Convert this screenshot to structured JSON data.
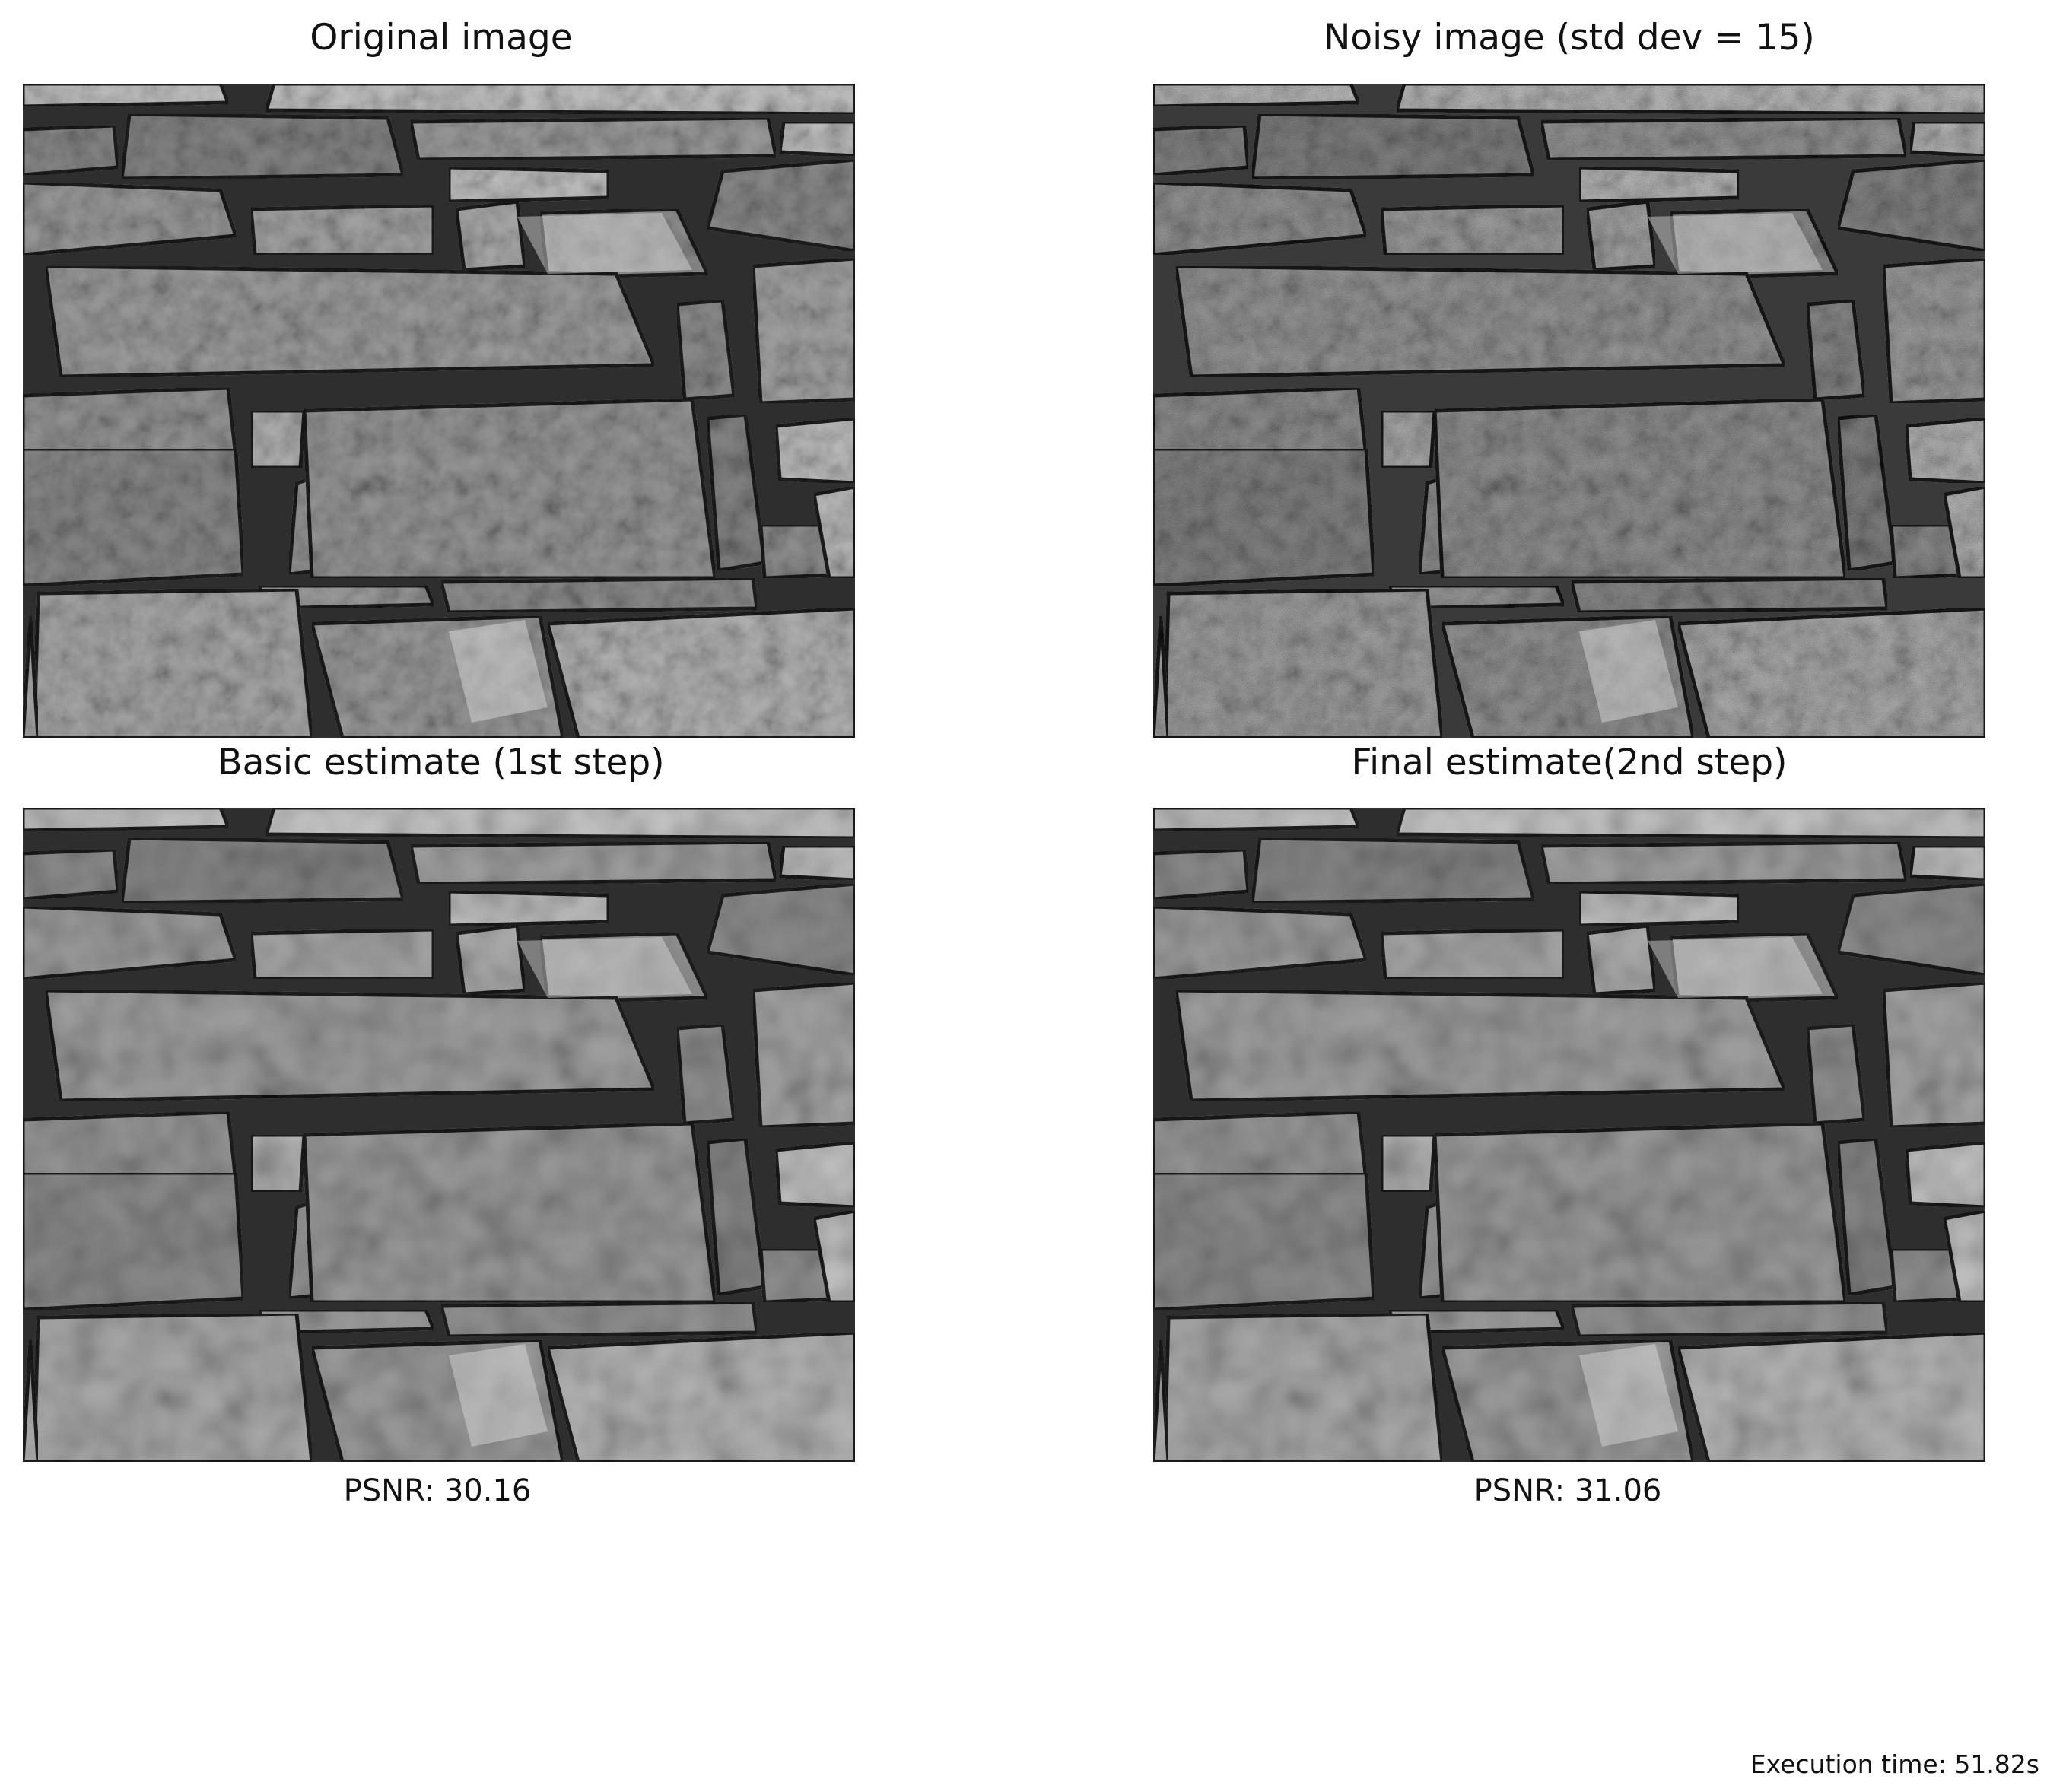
{
  "panels": [
    {
      "title": "Original image",
      "texture_variant": "original"
    },
    {
      "title": "Noisy image (std dev = 15)",
      "texture_variant": "noisy"
    },
    {
      "title": "Basic estimate (1st step)",
      "psnr": "PSNR: 30.16",
      "texture_variant": "basic"
    },
    {
      "title": "Final estimate(2nd step)",
      "psnr": "PSNR: 31.06",
      "texture_variant": "final"
    }
  ],
  "footer": {
    "execution_time": "Execution time: 51.82s"
  }
}
